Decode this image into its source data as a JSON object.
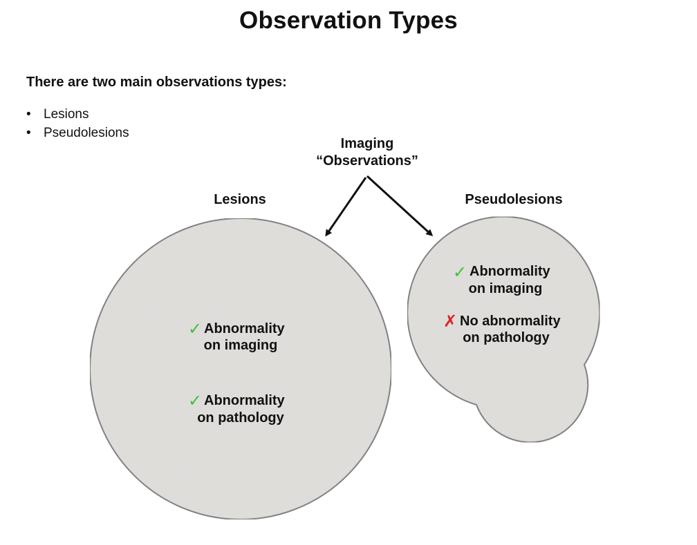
{
  "title": "Observation Types",
  "intro": "There are two main observations types:",
  "bullets": [
    "Lesions",
    "Pseudolesions"
  ],
  "diagram": {
    "root": {
      "line1": "Imaging",
      "line2": "“Observations”"
    },
    "lesions": {
      "label": "Lesions",
      "items": [
        {
          "mark": "✓",
          "line1": "Abnormality",
          "line2": "on imaging"
        },
        {
          "mark": "✓",
          "line1": "Abnormality",
          "line2": "on pathology"
        }
      ]
    },
    "pseudolesions": {
      "label": "Pseudolesions",
      "items": [
        {
          "mark": "✓",
          "line1": "Abnormality",
          "line2": "on imaging"
        },
        {
          "mark": "✗",
          "line1": "No abnormality",
          "line2": "on pathology"
        }
      ]
    }
  },
  "colors": {
    "check": "#3cc13c",
    "cross": "#e02020",
    "fill": "#e4e2df",
    "stroke": "#6e6e6e"
  }
}
